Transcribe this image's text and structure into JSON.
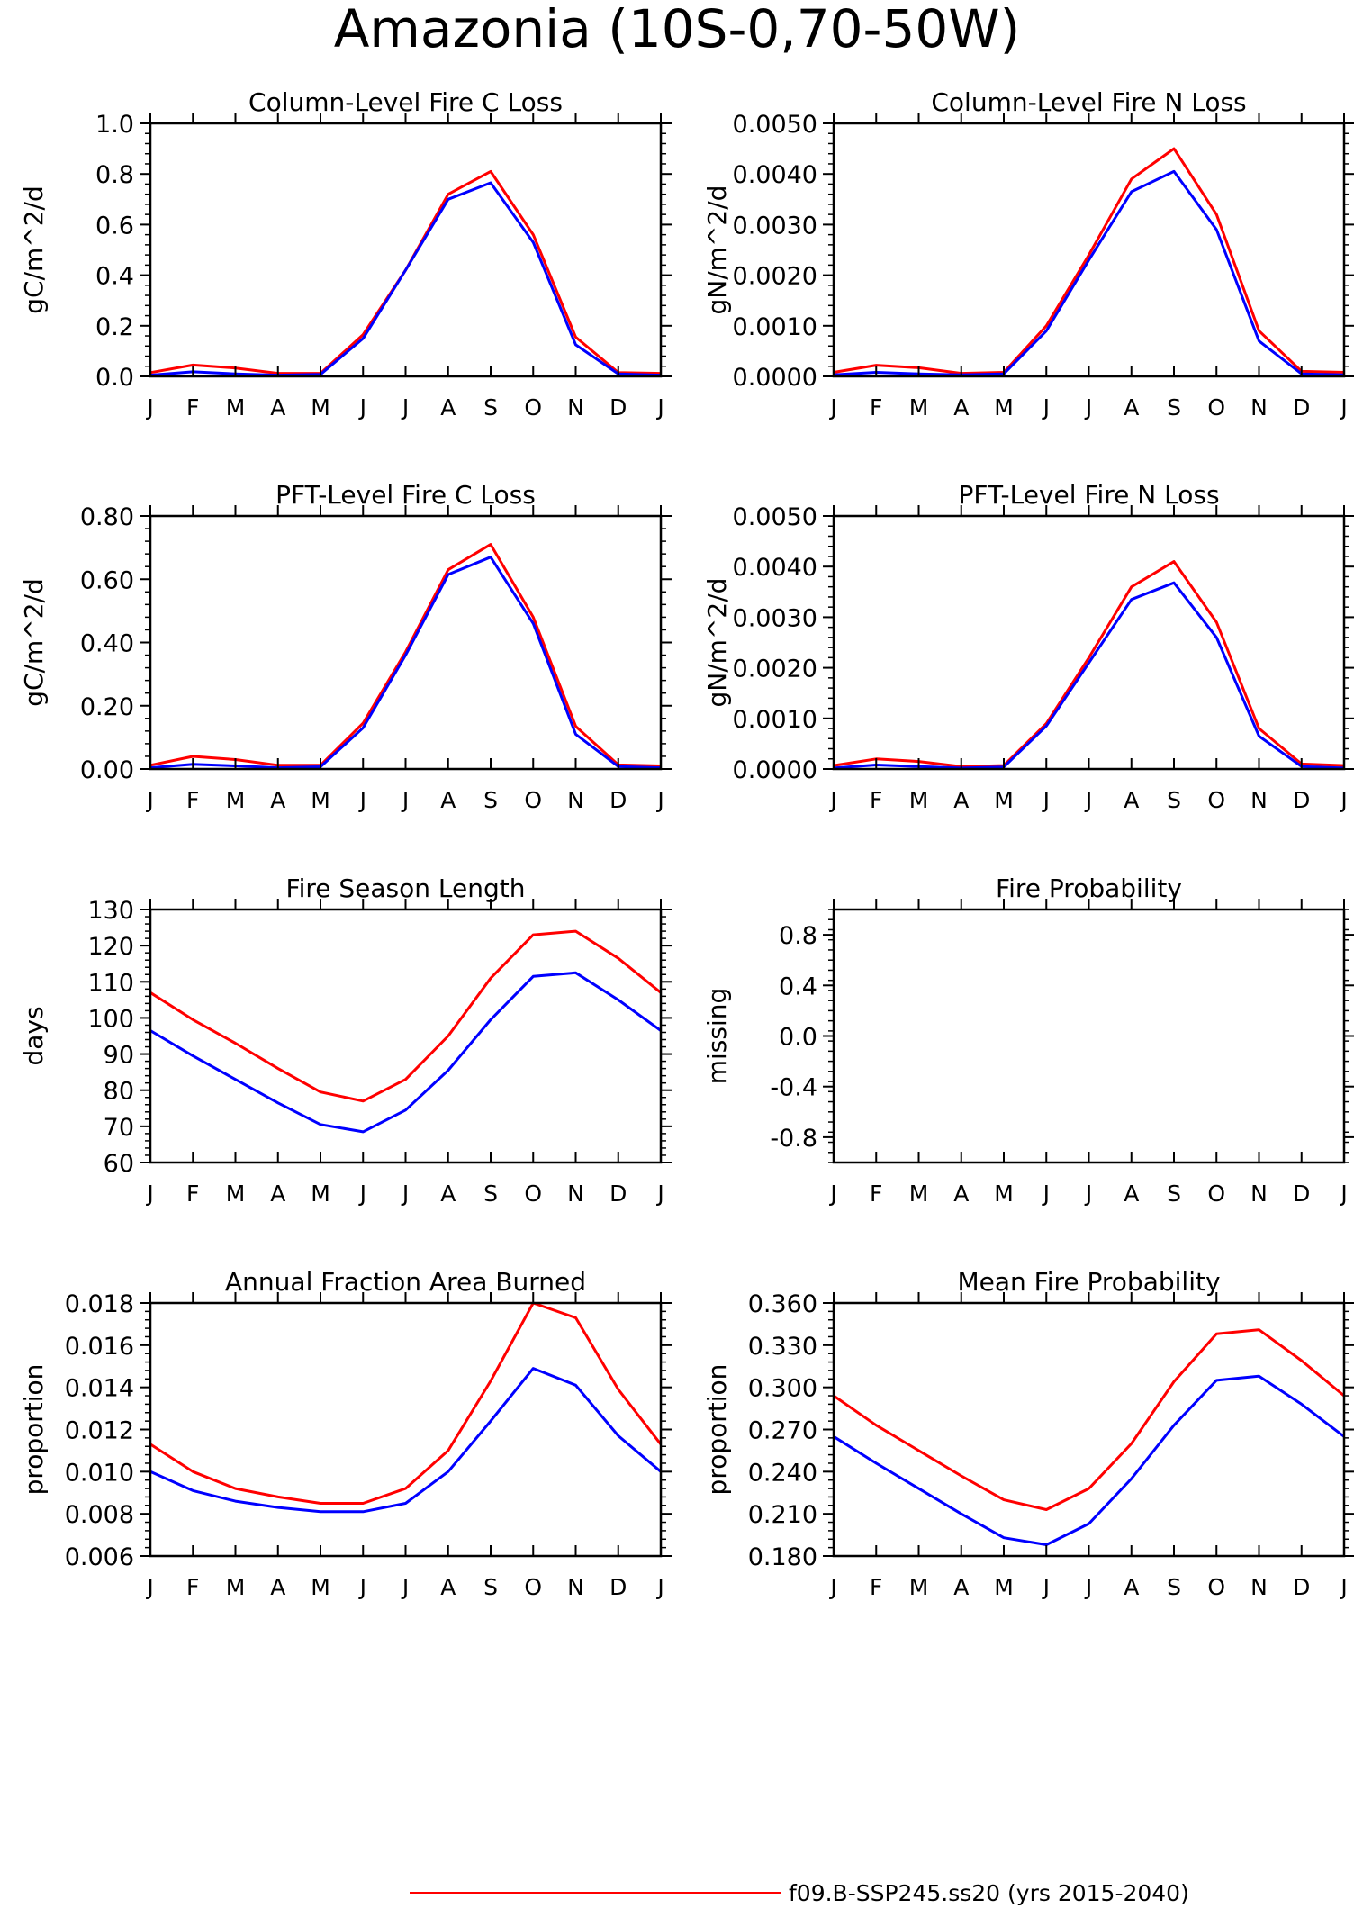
{
  "page": {
    "title": "Amazonia (10S-0,70-50W)",
    "legend": {
      "label": "f09.B-SSP245.ss20 (yrs 2015-2040)"
    }
  },
  "colors": {
    "red_series": "#ff0000",
    "blue_series": "#0000ff",
    "axis": "#000000"
  },
  "chart_data": [
    {
      "type": "line",
      "title": "Column-Level Fire C Loss",
      "ylabel": "gC/m^2/d",
      "categories": [
        "J",
        "F",
        "M",
        "A",
        "M",
        "J",
        "J",
        "A",
        "S",
        "O",
        "N",
        "D",
        "J"
      ],
      "ylim": [
        0,
        1.0
      ],
      "yticks": [
        "0.0",
        "0.2",
        "0.4",
        "0.6",
        "0.8",
        "1.0"
      ],
      "yticks_values": [
        0,
        0.2,
        0.4,
        0.6,
        0.8,
        1.0
      ],
      "series": [
        {
          "color": "#ff0000",
          "values": [
            0.015,
            0.045,
            0.033,
            0.012,
            0.012,
            0.165,
            0.42,
            0.72,
            0.81,
            0.56,
            0.155,
            0.015,
            0.012
          ]
        },
        {
          "color": "#0000ff",
          "values": [
            0.005,
            0.018,
            0.01,
            0.005,
            0.008,
            0.15,
            0.42,
            0.7,
            0.765,
            0.53,
            0.125,
            0.01,
            0.005
          ]
        }
      ]
    },
    {
      "type": "line",
      "title": "Column-Level Fire N Loss",
      "ylabel": "gN/m^2/d",
      "categories": [
        "J",
        "F",
        "M",
        "A",
        "M",
        "J",
        "J",
        "A",
        "S",
        "O",
        "N",
        "D",
        "J"
      ],
      "ylim": [
        0,
        0.005
      ],
      "yticks": [
        "0.0000",
        "0.0010",
        "0.0020",
        "0.0030",
        "0.0040",
        "0.0050"
      ],
      "yticks_values": [
        0,
        0.001,
        0.002,
        0.003,
        0.004,
        0.005
      ],
      "series": [
        {
          "color": "#ff0000",
          "values": [
            8e-05,
            0.00022,
            0.00017,
            6e-05,
            8e-05,
            0.001,
            0.0024,
            0.0039,
            0.0045,
            0.0032,
            0.0009,
            0.0001,
            8e-05
          ]
        },
        {
          "color": "#0000ff",
          "values": [
            3e-05,
            8e-05,
            5e-05,
            3e-05,
            5e-05,
            0.0009,
            0.0023,
            0.00365,
            0.00405,
            0.0029,
            0.0007,
            5e-05,
            3e-05
          ]
        }
      ]
    },
    {
      "type": "line",
      "title": "PFT-Level Fire C Loss",
      "ylabel": "gC/m^2/d",
      "categories": [
        "J",
        "F",
        "M",
        "A",
        "M",
        "J",
        "J",
        "A",
        "S",
        "O",
        "N",
        "D",
        "J"
      ],
      "ylim": [
        0,
        0.8
      ],
      "yticks": [
        "0.00",
        "0.20",
        "0.40",
        "0.60",
        "0.80"
      ],
      "yticks_values": [
        0,
        0.2,
        0.4,
        0.6,
        0.8
      ],
      "series": [
        {
          "color": "#ff0000",
          "values": [
            0.012,
            0.04,
            0.03,
            0.012,
            0.012,
            0.145,
            0.37,
            0.63,
            0.71,
            0.48,
            0.135,
            0.013,
            0.01
          ]
        },
        {
          "color": "#0000ff",
          "values": [
            0.004,
            0.015,
            0.01,
            0.004,
            0.007,
            0.13,
            0.36,
            0.615,
            0.67,
            0.46,
            0.11,
            0.008,
            0.004
          ]
        }
      ]
    },
    {
      "type": "line",
      "title": "PFT-Level Fire N Loss",
      "ylabel": "gN/m^2/d",
      "categories": [
        "J",
        "F",
        "M",
        "A",
        "M",
        "J",
        "J",
        "A",
        "S",
        "O",
        "N",
        "D",
        "J"
      ],
      "ylim": [
        0,
        0.005
      ],
      "yticks": [
        "0.0000",
        "0.0010",
        "0.0020",
        "0.0030",
        "0.0040",
        "0.0050"
      ],
      "yticks_values": [
        0,
        0.001,
        0.002,
        0.003,
        0.004,
        0.005
      ],
      "series": [
        {
          "color": "#ff0000",
          "values": [
            7e-05,
            0.0002,
            0.00015,
            5e-05,
            7e-05,
            0.0009,
            0.0022,
            0.0036,
            0.0041,
            0.0029,
            0.0008,
            0.0001,
            7e-05
          ]
        },
        {
          "color": "#0000ff",
          "values": [
            2e-05,
            8e-05,
            5e-05,
            2e-05,
            4e-05,
            0.00085,
            0.0021,
            0.00335,
            0.00368,
            0.0026,
            0.00065,
            5e-05,
            2e-05
          ]
        }
      ]
    },
    {
      "type": "line",
      "title": "Fire Season Length",
      "ylabel": "days",
      "categories": [
        "J",
        "F",
        "M",
        "A",
        "M",
        "J",
        "J",
        "A",
        "S",
        "O",
        "N",
        "D",
        "J"
      ],
      "ylim": [
        60,
        130
      ],
      "yticks": [
        "60",
        "70",
        "80",
        "90",
        "100",
        "110",
        "120",
        "130"
      ],
      "yticks_values": [
        60,
        70,
        80,
        90,
        100,
        110,
        120,
        130
      ],
      "series": [
        {
          "color": "#ff0000",
          "values": [
            107,
            99.5,
            93,
            86,
            79.5,
            77,
            83,
            95,
            111,
            123,
            124,
            116.5,
            107
          ]
        },
        {
          "color": "#0000ff",
          "values": [
            96.5,
            89.5,
            83,
            76.5,
            70.5,
            68.5,
            74.5,
            85.5,
            99.5,
            111.5,
            112.5,
            105,
            96.5
          ]
        }
      ]
    },
    {
      "type": "line",
      "title": "Fire Probability",
      "ylabel": "missing",
      "categories": [
        "J",
        "F",
        "M",
        "A",
        "M",
        "J",
        "J",
        "A",
        "S",
        "O",
        "N",
        "D",
        "J"
      ],
      "ylim": [
        -1.0,
        1.0
      ],
      "yticks": [
        "-0.8",
        "-0.4",
        "0.0",
        "0.4",
        "0.8"
      ],
      "yticks_values": [
        -0.8,
        -0.4,
        0.0,
        0.4,
        0.8
      ],
      "series": []
    },
    {
      "type": "line",
      "title": "Annual Fraction Area Burned",
      "ylabel": "proportion",
      "categories": [
        "J",
        "F",
        "M",
        "A",
        "M",
        "J",
        "J",
        "A",
        "S",
        "O",
        "N",
        "D",
        "J"
      ],
      "ylim": [
        0.006,
        0.018
      ],
      "yticks": [
        "0.006",
        "0.008",
        "0.010",
        "0.012",
        "0.014",
        "0.016",
        "0.018"
      ],
      "yticks_values": [
        0.006,
        0.008,
        0.01,
        0.012,
        0.014,
        0.016,
        0.018
      ],
      "series": [
        {
          "color": "#ff0000",
          "values": [
            0.0113,
            0.01,
            0.0092,
            0.0088,
            0.0085,
            0.0085,
            0.0092,
            0.011,
            0.0143,
            0.018,
            0.0173,
            0.0139,
            0.0113
          ]
        },
        {
          "color": "#0000ff",
          "values": [
            0.01,
            0.0091,
            0.0086,
            0.0083,
            0.0081,
            0.0081,
            0.0085,
            0.01,
            0.0124,
            0.0149,
            0.0141,
            0.0117,
            0.01
          ]
        }
      ]
    },
    {
      "type": "line",
      "title": "Mean Fire Probability",
      "ylabel": "proportion",
      "categories": [
        "J",
        "F",
        "M",
        "A",
        "M",
        "J",
        "J",
        "A",
        "S",
        "O",
        "N",
        "D",
        "J"
      ],
      "ylim": [
        0.18,
        0.36
      ],
      "yticks": [
        "0.180",
        "0.210",
        "0.240",
        "0.270",
        "0.300",
        "0.330",
        "0.360"
      ],
      "yticks_values": [
        0.18,
        0.21,
        0.24,
        0.27,
        0.3,
        0.33,
        0.36
      ],
      "series": [
        {
          "color": "#ff0000",
          "values": [
            0.294,
            0.273,
            0.255,
            0.237,
            0.22,
            0.213,
            0.228,
            0.26,
            0.304,
            0.338,
            0.341,
            0.319,
            0.294
          ]
        },
        {
          "color": "#0000ff",
          "values": [
            0.265,
            0.246,
            0.228,
            0.21,
            0.193,
            0.188,
            0.203,
            0.235,
            0.273,
            0.305,
            0.308,
            0.288,
            0.265
          ]
        }
      ]
    }
  ]
}
